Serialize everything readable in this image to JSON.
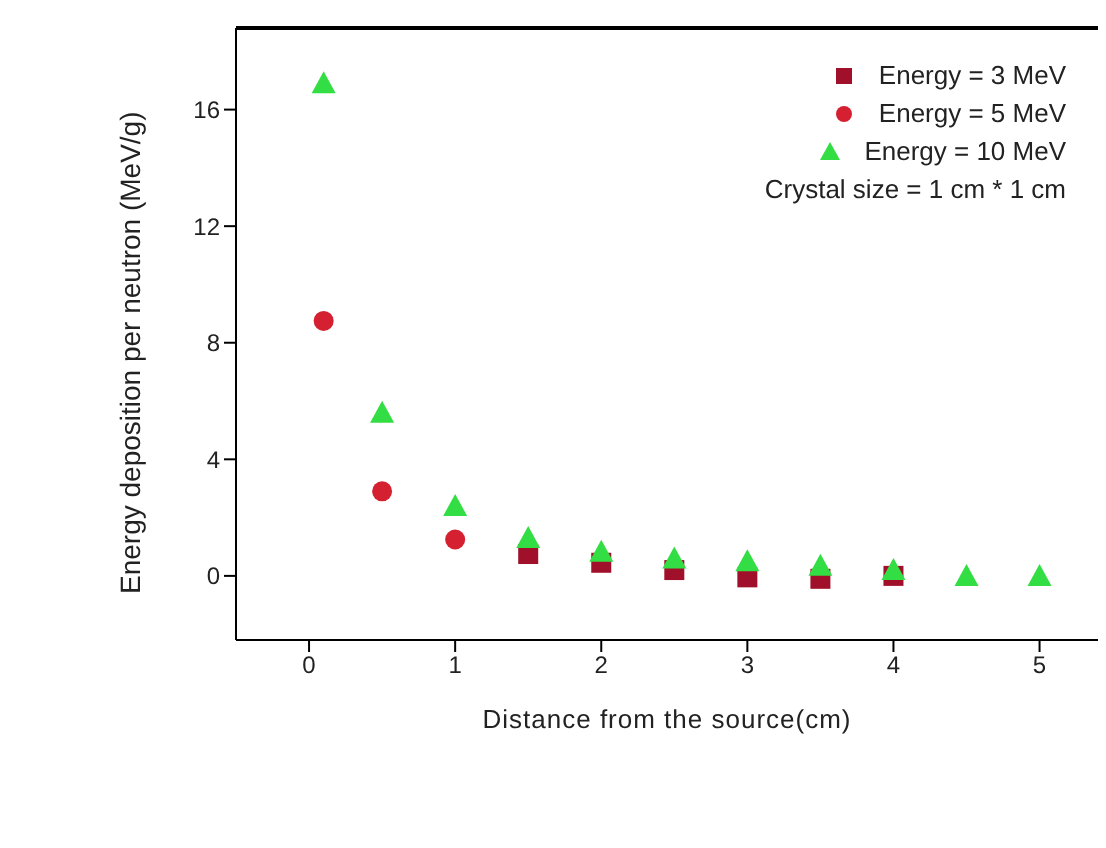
{
  "chart_data": {
    "type": "scatter",
    "xlabel": "Distance from the source(cm)",
    "ylabel": "Energy deposition per neutron (MeV/g)",
    "x": [
      0.1,
      0.5,
      1,
      1.5,
      2,
      2.5,
      3,
      3.5,
      4,
      4.5,
      5
    ],
    "series": [
      {
        "name": "Energy = 3  MeV",
        "color": "#a0102a",
        "marker": "square",
        "values": [
          null,
          null,
          null,
          0.75,
          0.45,
          0.2,
          -0.05,
          -0.1,
          0,
          null,
          null
        ]
      },
      {
        "name": "Energy = 5  MeV",
        "color": "#d42030",
        "marker": "circle",
        "values": [
          8.75,
          2.9,
          1.25,
          null,
          null,
          null,
          null,
          null,
          null,
          null,
          null
        ]
      },
      {
        "name": "Energy = 10 MeV",
        "color": "#33dd44",
        "marker": "triangle",
        "values": [
          16.9,
          5.6,
          2.4,
          1.3,
          0.83,
          0.6,
          0.5,
          0.35,
          0.2,
          0,
          0
        ]
      }
    ],
    "annotations": [
      "Crystal size = 1 cm * 1 cm"
    ],
    "xlim": [
      -0.5,
      5.4
    ],
    "xticks": [
      0,
      1,
      2,
      3,
      4,
      5
    ],
    "ylim": [
      -2.2,
      18.8
    ],
    "yticks": [
      0,
      4,
      8,
      12,
      16
    ],
    "legend": "top right",
    "grid": false
  }
}
